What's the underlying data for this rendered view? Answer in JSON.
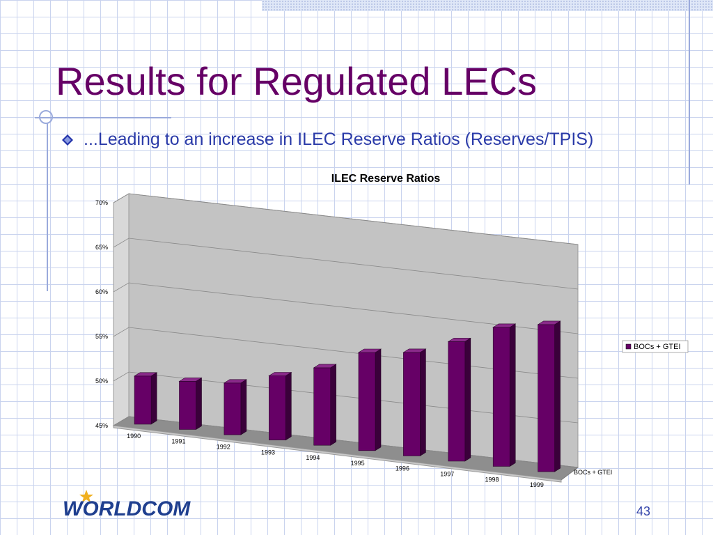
{
  "slide": {
    "title": "Results for Regulated LECs",
    "bullet": "...Leading to an increase in ILEC Reserve Ratios (Reserves/TPIS)",
    "page_number": "43",
    "logo_text": "WORLDCOM",
    "colors": {
      "title": "#660066",
      "bullet_text": "#2a3aa8",
      "accent_line": "#9aaadc"
    }
  },
  "chart_data": {
    "type": "bar",
    "title": "ILEC Reserve Ratios",
    "categories": [
      "1990",
      "1991",
      "1992",
      "1993",
      "1994",
      "1995",
      "1996",
      "1997",
      "1998",
      "1999"
    ],
    "series": [
      {
        "name": "BOCs + GTEI",
        "values": [
          50.4,
          50.4,
          50.8,
          52.2,
          53.7,
          56.0,
          56.6,
          58.4,
          60.6,
          61.5
        ],
        "color": "#660066"
      }
    ],
    "depth_axis_label": "BOCs + GTEI",
    "y_ticks": [
      "45%",
      "50%",
      "55%",
      "60%",
      "65%",
      "70%"
    ],
    "ylim": [
      45,
      70
    ],
    "xlabel": "",
    "ylabel": "",
    "grid": true,
    "legend": "right",
    "style": "3d-column"
  }
}
